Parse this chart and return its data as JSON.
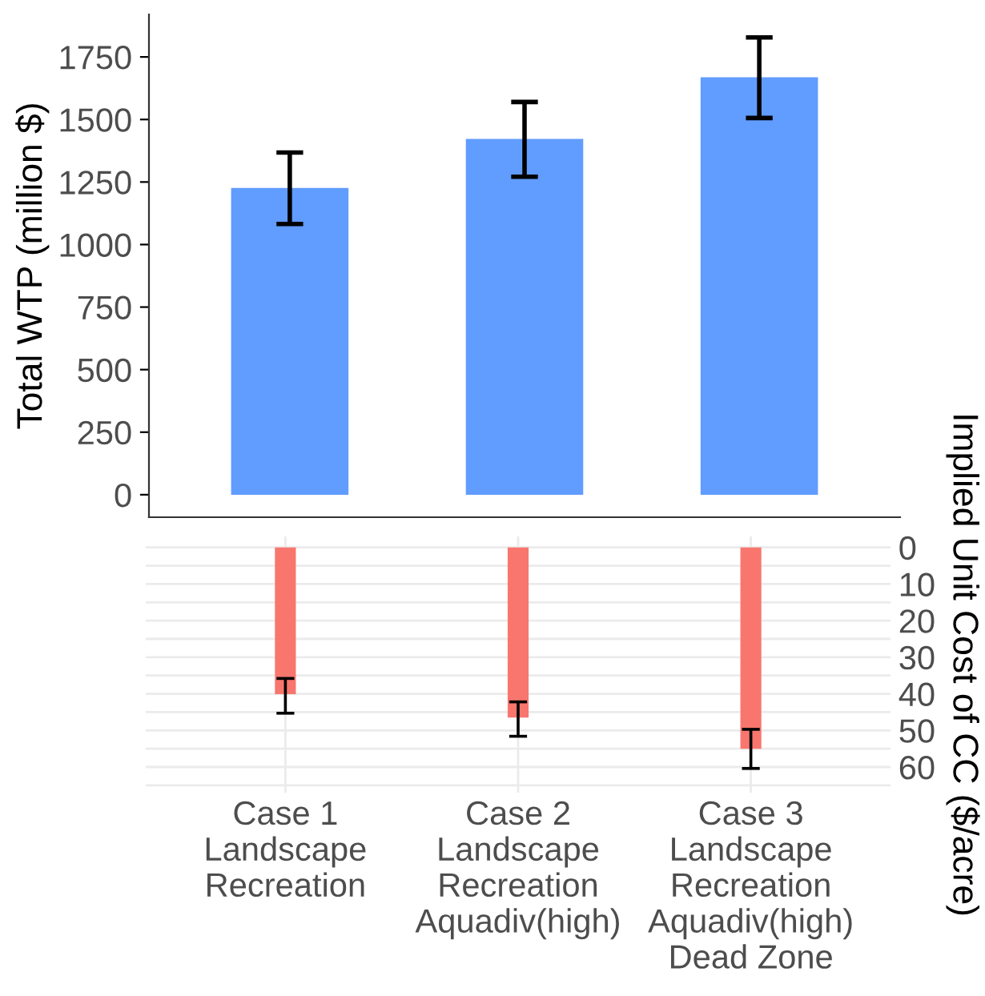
{
  "chart_data": [
    {
      "type": "bar",
      "ylabel": "Total WTP (million $)",
      "categories": [
        null,
        null,
        null
      ],
      "series": [
        {
          "color": "#619cff",
          "values": [
            1226,
            1422,
            1669
          ],
          "errors": [
            [
              1082,
              1368
            ],
            [
              1271,
              1570
            ],
            [
              1506,
              1828
            ]
          ]
        }
      ],
      "ylim": [
        -90,
        1920
      ],
      "yticks": [
        0,
        250,
        500,
        750,
        1000,
        1250,
        1500,
        1750
      ],
      "tick_labels": "y",
      "grid": false
    },
    {
      "type": "bar",
      "ylabel": "Implied Unit Cost of CC ($/acre)",
      "categories": [
        "Case 1\nLandscape\nRecreation",
        "Case 2\nLandscape\nRecreation\nAquadiv(high)",
        "Case 3\nLandscape\nRecreation\nAquadiv(high)\nDead Zone"
      ],
      "series": [
        {
          "color": "#f8766d",
          "values": [
            40.1,
            46.5,
            55
          ],
          "errors": [
            [
              35.8,
              45.3
            ],
            [
              42.2,
              51.6
            ],
            [
              49.7,
              60.4
            ]
          ]
        }
      ],
      "ylim": [
        67,
        -3
      ],
      "yticks": [
        0,
        {
          "value": 5,
          "label": null
        },
        10,
        {
          "value": 15,
          "label": null
        },
        20,
        {
          "value": 25,
          "label": null
        },
        30,
        {
          "value": 35,
          "label": null
        },
        40,
        {
          "value": 45,
          "label": null
        },
        50,
        {
          "value": 55,
          "label": null
        },
        60,
        {
          "value": 65,
          "label": null
        }
      ],
      "grid": true
    }
  ]
}
